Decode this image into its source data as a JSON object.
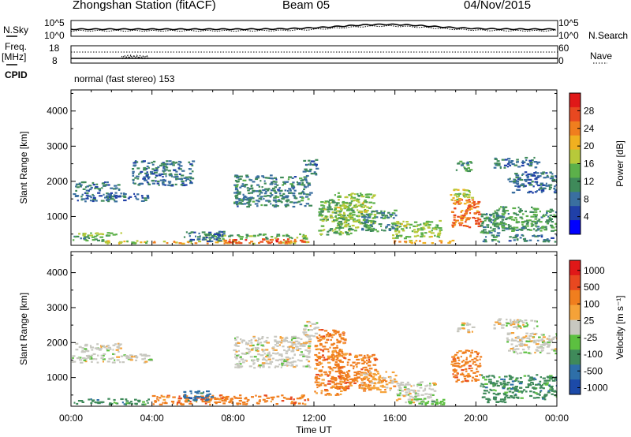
{
  "header": {
    "title": "Zhongshan Station (fitACF)",
    "beam": "Beam 05",
    "date": "04/Nov/2015",
    "cpid_text": "normal (fast stereo) 153"
  },
  "panel_labels": {
    "nsky": "N.Sky",
    "nsearch": "N.Search",
    "freq": "Freq.",
    "freq_unit": "[MHz]",
    "nave": "Nave",
    "cpid": "CPID"
  },
  "noise_axis": {
    "left_top": "10^5",
    "left_bottom": "10^0",
    "right_top": "10^5",
    "right_bottom": "10^0"
  },
  "freq_axis": {
    "left_top": "18",
    "left_bottom": "8",
    "right_top": "60",
    "right_bottom": "0"
  },
  "chart_data": [
    {
      "type": "heatmap",
      "panel": "power",
      "ylabel": "Slant Range [km]",
      "xlabel": "Time UT",
      "x_ticks": [
        "00:00",
        "04:00",
        "08:00",
        "12:00",
        "16:00",
        "20:00",
        "00:00"
      ],
      "xlim_hours": [
        0,
        24
      ],
      "y_ticks": [
        1000,
        2000,
        3000,
        4000
      ],
      "ylim": [
        180,
        4600
      ],
      "colorbar": {
        "label": "Power [dB]",
        "ticks": [
          "4",
          "8",
          "12",
          "16",
          "20",
          "24",
          "28"
        ],
        "colors": [
          "#0000ff",
          "#2040a8",
          "#3a6fa0",
          "#3f8a5a",
          "#5cb04a",
          "#b7c93a",
          "#f0b020",
          "#f07e1e",
          "#e84820",
          "#e01818"
        ]
      },
      "regions": [
        {
          "t0": 0.0,
          "t1": 3.9,
          "r0": 1450,
          "r1": 1700,
          "v": 7
        },
        {
          "t0": 0.2,
          "t1": 2.4,
          "r0": 1750,
          "r1": 2000,
          "v": 9
        },
        {
          "t0": 0.0,
          "t1": 1.8,
          "r0": 320,
          "r1": 480,
          "v": 12
        },
        {
          "t0": 0.3,
          "t1": 2.5,
          "r0": 480,
          "r1": 560,
          "v": 16
        },
        {
          "t0": 1.0,
          "t1": 3.8,
          "r0": 250,
          "r1": 330,
          "v": 18
        },
        {
          "t0": 4.0,
          "t1": 11.7,
          "r0": 250,
          "r1": 330,
          "v": 22
        },
        {
          "t0": 7.5,
          "t1": 11.5,
          "r0": 260,
          "r1": 380,
          "v": 28
        },
        {
          "t0": 6.5,
          "t1": 11.6,
          "r0": 380,
          "r1": 520,
          "v": 14
        },
        {
          "t0": 5.5,
          "t1": 7.5,
          "r0": 300,
          "r1": 600,
          "v": 8
        },
        {
          "t0": 3.0,
          "t1": 6.0,
          "r0": 1900,
          "r1": 2600,
          "v": 8
        },
        {
          "t0": 8.0,
          "t1": 11.8,
          "r0": 1300,
          "r1": 2200,
          "v": 9
        },
        {
          "t0": 11.4,
          "t1": 12.1,
          "r0": 2200,
          "r1": 2650,
          "v": 8
        },
        {
          "t0": 12.2,
          "t1": 14.0,
          "r0": 500,
          "r1": 1500,
          "v": 14
        },
        {
          "t0": 13.0,
          "t1": 15.0,
          "r0": 700,
          "r1": 1700,
          "v": 16
        },
        {
          "t0": 14.3,
          "t1": 16.0,
          "r0": 600,
          "r1": 1200,
          "v": 10
        },
        {
          "t0": 15.8,
          "t1": 18.2,
          "r0": 400,
          "r1": 900,
          "v": 16
        },
        {
          "t0": 15.8,
          "t1": 19.0,
          "r0": 260,
          "r1": 340,
          "v": 22
        },
        {
          "t0": 18.7,
          "t1": 20.2,
          "r0": 700,
          "r1": 1500,
          "v": 26
        },
        {
          "t0": 18.6,
          "t1": 19.8,
          "r0": 1500,
          "r1": 1800,
          "v": 18
        },
        {
          "t0": 19.0,
          "t1": 19.8,
          "r0": 2300,
          "r1": 2600,
          "v": 12
        },
        {
          "t0": 20.2,
          "t1": 21.2,
          "r0": 300,
          "r1": 1100,
          "v": 10
        },
        {
          "t0": 20.8,
          "t1": 24.0,
          "r0": 600,
          "r1": 1300,
          "v": 12
        },
        {
          "t0": 21.6,
          "t1": 24.0,
          "r0": 300,
          "r1": 500,
          "v": 8
        },
        {
          "t0": 20.8,
          "t1": 23.0,
          "r0": 2400,
          "r1": 2700,
          "v": 8
        },
        {
          "t0": 21.5,
          "t1": 24.0,
          "r0": 1700,
          "r1": 2300,
          "v": 7
        }
      ]
    },
    {
      "type": "heatmap",
      "panel": "velocity",
      "ylabel": "Slant Range [km]",
      "xlabel": "Time UT",
      "x_ticks": [
        "00:00",
        "04:00",
        "08:00",
        "12:00",
        "16:00",
        "20:00",
        "00:00"
      ],
      "xlim_hours": [
        0,
        24
      ],
      "y_ticks": [
        1000,
        2000,
        3000,
        4000
      ],
      "ylim": [
        180,
        4600
      ],
      "colorbar": {
        "label": "Velocity [m s⁻¹]",
        "ticks": [
          "1000",
          "500",
          "100",
          "25",
          "-25",
          "-100",
          "-500",
          "-1000"
        ],
        "colors": [
          "#1c4aa8",
          "#2e6fa8",
          "#3f8a5a",
          "#5cc040",
          "#c8c8c0",
          "#f5a238",
          "#f07e1e",
          "#e84820",
          "#e01818"
        ]
      },
      "regions": [
        {
          "t0": 0.0,
          "t1": 3.9,
          "r0": 1450,
          "r1": 1700,
          "v": 4
        },
        {
          "t0": 0.2,
          "t1": 2.4,
          "r0": 1750,
          "r1": 2000,
          "v": 4
        },
        {
          "t0": 0.0,
          "t1": 3.8,
          "r0": 250,
          "r1": 420,
          "v": 2
        },
        {
          "t0": 4.0,
          "t1": 11.7,
          "r0": 250,
          "r1": 520,
          "v": 6
        },
        {
          "t0": 5.5,
          "t1": 7.0,
          "r0": 350,
          "r1": 650,
          "v": 1
        },
        {
          "t0": 8.0,
          "t1": 11.8,
          "r0": 1300,
          "r1": 2200,
          "v": 4
        },
        {
          "t0": 11.4,
          "t1": 12.1,
          "r0": 2200,
          "r1": 2650,
          "v": 4
        },
        {
          "t0": 12.0,
          "t1": 13.5,
          "r0": 500,
          "r1": 2400,
          "v": 6
        },
        {
          "t0": 13.0,
          "t1": 15.0,
          "r0": 700,
          "r1": 1700,
          "v": 6
        },
        {
          "t0": 14.3,
          "t1": 16.0,
          "r0": 600,
          "r1": 1200,
          "v": 5
        },
        {
          "t0": 16.0,
          "t1": 18.0,
          "r0": 300,
          "r1": 900,
          "v": 4
        },
        {
          "t0": 16.5,
          "t1": 18.5,
          "r0": 250,
          "r1": 420,
          "v": 3
        },
        {
          "t0": 18.7,
          "t1": 20.2,
          "r0": 900,
          "r1": 1800,
          "v": 6
        },
        {
          "t0": 19.0,
          "t1": 19.8,
          "r0": 2300,
          "r1": 2600,
          "v": 4
        },
        {
          "t0": 20.2,
          "t1": 21.5,
          "r0": 300,
          "r1": 1100,
          "v": 2
        },
        {
          "t0": 21.5,
          "t1": 24.0,
          "r0": 400,
          "r1": 1100,
          "v": 2
        },
        {
          "t0": 20.8,
          "t1": 23.0,
          "r0": 2400,
          "r1": 2700,
          "v": 4
        },
        {
          "t0": 21.5,
          "t1": 24.0,
          "r0": 1700,
          "r1": 2300,
          "v": 4
        }
      ]
    }
  ]
}
